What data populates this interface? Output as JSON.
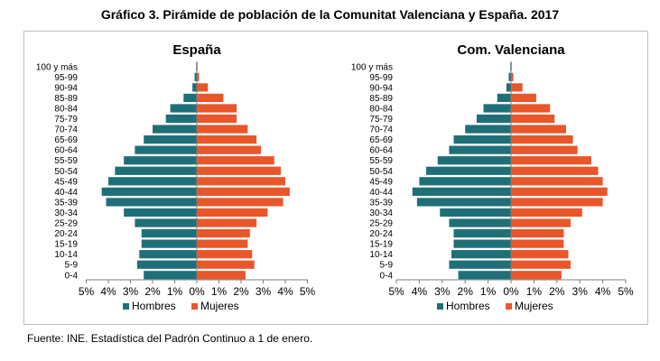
{
  "title": "Gráfico 3. Pirámide de población de la Comunitat Valenciana y España. 2017",
  "source": "Fuente: INE. Estadística del Padrón Continuo a 1 de enero.",
  "colors": {
    "hombres": "#1f6f78",
    "mujeres": "#e8562a"
  },
  "chart_data": [
    {
      "type": "bar",
      "orientation": "horizontal-pyramid",
      "title": "España",
      "categories": [
        "100 y más",
        "95-99",
        "90-94",
        "85-89",
        "80-84",
        "75-79",
        "70-74",
        "65-69",
        "60-64",
        "55-59",
        "50-54",
        "45-49",
        "40-44",
        "35-39",
        "30-34",
        "25-29",
        "20-24",
        "15-19",
        "10-14",
        "5-9",
        "0-4"
      ],
      "series": [
        {
          "name": "Hombres",
          "values": [
            0.0,
            0.1,
            0.2,
            0.6,
            1.2,
            1.4,
            2.0,
            2.4,
            2.8,
            3.3,
            3.7,
            4.0,
            4.3,
            4.1,
            3.3,
            2.8,
            2.5,
            2.5,
            2.6,
            2.7,
            2.4
          ]
        },
        {
          "name": "Mujeres",
          "values": [
            0.0,
            0.1,
            0.5,
            1.2,
            1.8,
            1.8,
            2.3,
            2.7,
            2.9,
            3.5,
            3.8,
            4.0,
            4.2,
            3.9,
            3.2,
            2.7,
            2.4,
            2.3,
            2.5,
            2.6,
            2.2
          ]
        }
      ],
      "xlabels": [
        "5%",
        "4%",
        "3%",
        "2%",
        "1%",
        "0%",
        "1%",
        "2%",
        "3%",
        "4%",
        "5%"
      ],
      "xlim": [
        -5,
        5
      ],
      "legend": "bottom-center"
    },
    {
      "type": "bar",
      "orientation": "horizontal-pyramid",
      "title": "Com. Valenciana",
      "categories": [
        "100 y más",
        "95-99",
        "90-94",
        "85-89",
        "80-84",
        "75-79",
        "70-74",
        "65-69",
        "60-64",
        "55-59",
        "50-54",
        "45-49",
        "40-44",
        "35-39",
        "30-34",
        "25-29",
        "20-24",
        "15-19",
        "10-14",
        "5-9",
        "0-4"
      ],
      "series": [
        {
          "name": "Hombres",
          "values": [
            0.0,
            0.1,
            0.2,
            0.6,
            1.2,
            1.5,
            2.0,
            2.5,
            2.7,
            3.2,
            3.7,
            4.0,
            4.3,
            4.1,
            3.1,
            2.7,
            2.5,
            2.5,
            2.6,
            2.7,
            2.3
          ]
        },
        {
          "name": "Mujeres",
          "values": [
            0.0,
            0.1,
            0.5,
            1.1,
            1.7,
            1.9,
            2.4,
            2.7,
            2.9,
            3.5,
            3.8,
            4.0,
            4.2,
            4.0,
            3.1,
            2.6,
            2.3,
            2.3,
            2.5,
            2.6,
            2.2
          ]
        }
      ],
      "xlabels": [
        "5%",
        "4%",
        "3%",
        "2%",
        "1%",
        "0%",
        "1%",
        "2%",
        "3%",
        "4%",
        "5%"
      ],
      "xlim": [
        -5,
        5
      ],
      "legend": "bottom-center"
    }
  ]
}
